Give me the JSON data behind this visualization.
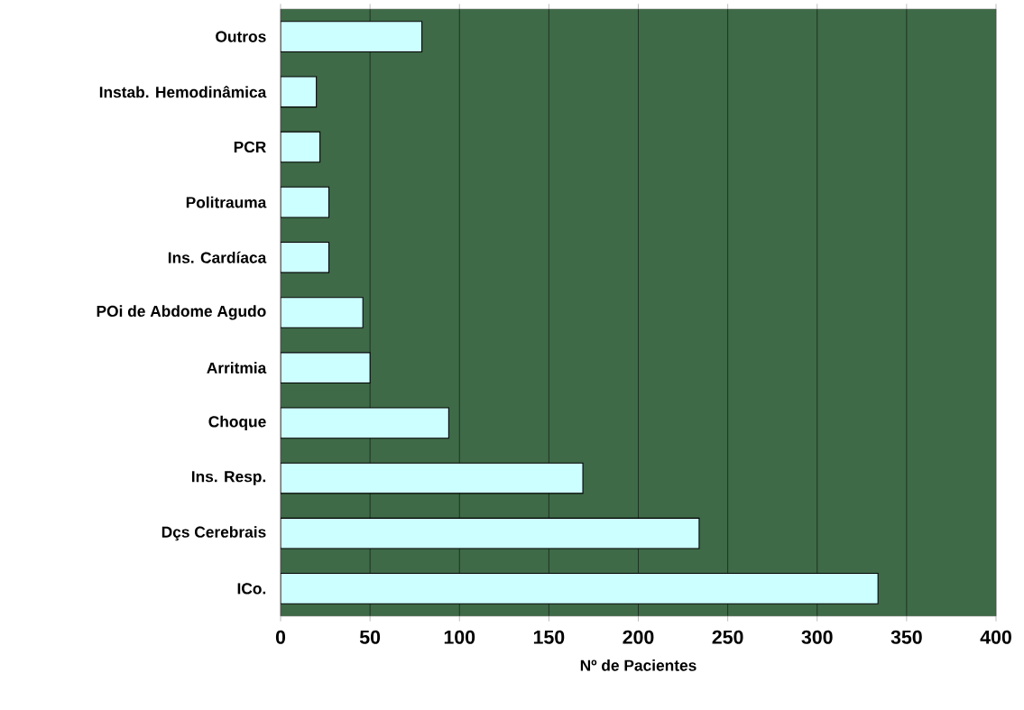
{
  "chart_data": {
    "type": "bar",
    "orientation": "horizontal",
    "xlabel": "Nº de Pacientes",
    "categories": [
      "Outros",
      "Instab. Hemodinâmica",
      "PCR",
      "Politrauma",
      "Ins. Cardíaca",
      "POi de Abdome Agudo",
      "Arritmia",
      "Choque",
      "Ins. Resp.",
      "Dçs Cerebrais",
      "ICo."
    ],
    "values": [
      79,
      20,
      22,
      27,
      27,
      46,
      50,
      94,
      169,
      234,
      334
    ],
    "color": "#ccffff",
    "xlim": [
      0,
      400
    ],
    "xticks": [
      0,
      50,
      100,
      150,
      200,
      250,
      300,
      350,
      400
    ],
    "grid": "x"
  }
}
